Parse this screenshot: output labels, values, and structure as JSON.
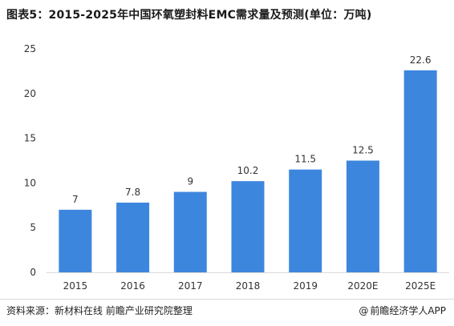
{
  "title": "图表5：2015-2025年中国环氧塑封料EMC需求量及预测(单位：万吨)",
  "source": "资料来源：新材料在线 前瞻产业研究院整理",
  "watermark": {
    "icon": "at-icon",
    "text": "前瞻经济学人APP"
  },
  "colors": {
    "bar": "#3D86DE",
    "grid": "#d9d9d9",
    "text": "#333333"
  },
  "chart_data": {
    "type": "bar",
    "title": "图表5：2015-2025年中国环氧塑封料EMC需求量及预测(单位：万吨)",
    "categories": [
      "2015",
      "2016",
      "2017",
      "2018",
      "2019",
      "2020E",
      "2025E"
    ],
    "values": [
      7,
      7.8,
      9,
      10.2,
      11.5,
      12.5,
      22.6
    ],
    "value_labels": [
      "7",
      "7.8",
      "9",
      "10.2",
      "11.5",
      "12.5",
      "22.6"
    ],
    "ylim": [
      0,
      25
    ],
    "yticks": [
      0,
      5,
      10,
      15,
      20,
      25
    ],
    "grid": false,
    "legend": "none"
  }
}
